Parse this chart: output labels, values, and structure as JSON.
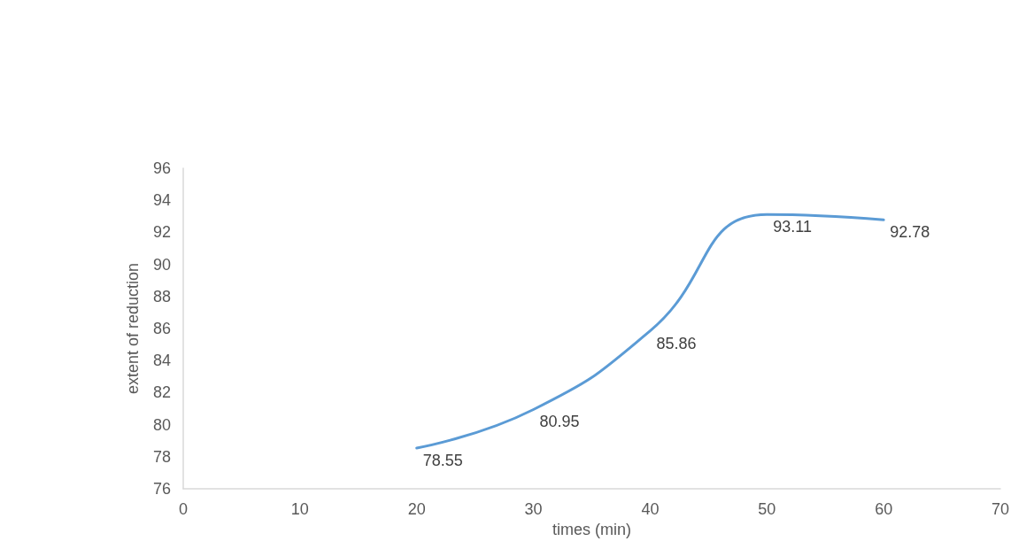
{
  "chart_data": {
    "type": "line",
    "xlabel": "times (min)",
    "ylabel": "extent of reduction",
    "x": [
      20,
      30,
      40,
      50,
      60
    ],
    "series": [
      {
        "color": "#5b9bd5",
        "values": [
          78.55,
          80.95,
          85.86,
          93.11,
          92.78
        ]
      }
    ],
    "xlim": [
      0,
      70
    ],
    "xticks": [
      0,
      10,
      20,
      30,
      40,
      50,
      60,
      70
    ],
    "ylim": [
      76,
      96
    ],
    "yticks": [
      76,
      78,
      80,
      82,
      84,
      86,
      88,
      90,
      92,
      94,
      96
    ],
    "data_labels": true,
    "grid": false,
    "marker": "none",
    "line_style": "solid"
  }
}
